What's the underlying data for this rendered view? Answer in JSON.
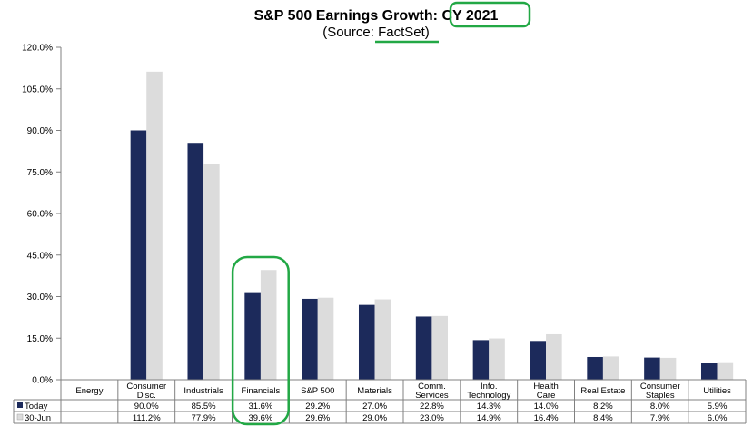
{
  "chart_data": {
    "type": "bar",
    "title_prefix": "S&P 500 Earnings Growth: ",
    "title_highlight": "CY 2021",
    "subtitle_prefix": "(Source: ",
    "subtitle_highlight": "FactSet",
    "subtitle_suffix": ")",
    "categories": [
      [
        "Energy"
      ],
      [
        "Consumer",
        "Disc."
      ],
      [
        "Industrials"
      ],
      [
        "Financials"
      ],
      [
        "S&P 500"
      ],
      [
        "Materials"
      ],
      [
        "Comm.",
        "Services"
      ],
      [
        "Info.",
        "Technology"
      ],
      [
        "Health",
        "Care"
      ],
      [
        "Real Estate"
      ],
      [
        "Consumer",
        "Staples"
      ],
      [
        "Utilities"
      ]
    ],
    "series": [
      {
        "name": "Today",
        "color": "#1c2a5b",
        "values": [
          null,
          90.0,
          85.5,
          31.6,
          29.2,
          27.0,
          22.8,
          14.3,
          14.0,
          8.2,
          8.0,
          5.9
        ],
        "labels": [
          "",
          "90.0%",
          "85.5%",
          "31.6%",
          "29.2%",
          "27.0%",
          "22.8%",
          "14.3%",
          "14.0%",
          "8.2%",
          "8.0%",
          "5.9%"
        ]
      },
      {
        "name": "30-Jun",
        "color": "#dcdcdc",
        "values": [
          null,
          111.2,
          77.9,
          39.6,
          29.6,
          29.0,
          23.0,
          14.9,
          16.4,
          8.4,
          7.9,
          6.0
        ],
        "labels": [
          "",
          "111.2%",
          "77.9%",
          "39.6%",
          "29.6%",
          "29.0%",
          "23.0%",
          "14.9%",
          "16.4%",
          "8.4%",
          "7.9%",
          "6.0%"
        ]
      }
    ],
    "yticks": [
      0,
      15,
      30,
      45,
      60,
      75,
      90,
      105,
      120
    ],
    "ytick_labels": [
      "0.0%",
      "15.0%",
      "30.0%",
      "45.0%",
      "60.0%",
      "75.0%",
      "90.0%",
      "105.0%",
      "120.0%"
    ],
    "ylim": [
      0,
      120
    ],
    "highlight_category": "Financials",
    "highlight_color": "#22a845",
    "grid": false,
    "legend": "data-table"
  }
}
